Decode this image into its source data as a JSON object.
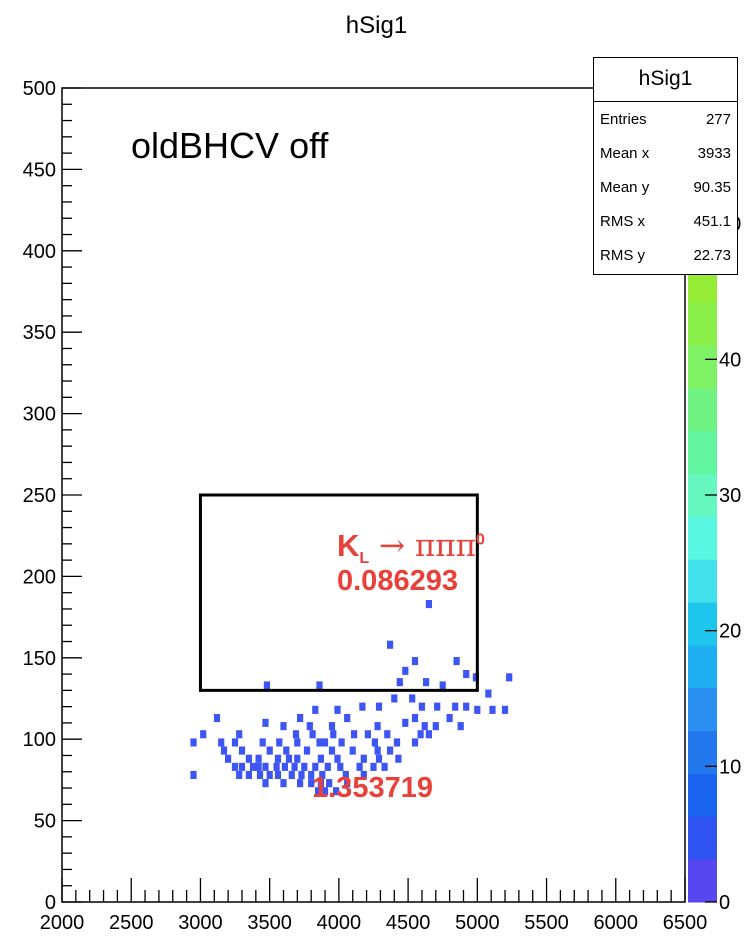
{
  "chart_data": {
    "type": "heatmap",
    "title": "hSig1",
    "xlabel": "",
    "ylabel": "",
    "xlim": [
      2000,
      6500
    ],
    "ylim": [
      0,
      500
    ],
    "x_ticks": [
      "2000",
      "2500",
      "3000",
      "3500",
      "4000",
      "4500",
      "5000",
      "5500",
      "6000",
      "6500"
    ],
    "y_ticks": [
      "0",
      "50",
      "100",
      "150",
      "200",
      "250",
      "300",
      "350",
      "400",
      "450",
      "500"
    ],
    "z_ticks": [
      "0",
      "10",
      "20",
      "30",
      "40",
      "50"
    ],
    "bin_width_x": 45,
    "bin_width_y": 5,
    "grid": false,
    "overlay_text": "oldBHCV off",
    "signal_box": {
      "x": [
        3000,
        5000
      ],
      "y": [
        130,
        250
      ]
    },
    "annotations": {
      "decay": "K_L → πππ0",
      "decay_parts": {
        "particle": "K",
        "sub": "L",
        "arrow": "→",
        "products": "πππ",
        "sup": "0"
      },
      "in_box_value": "0.086293",
      "below_box_value": "1.353719"
    },
    "stats": {
      "title": "hSig1",
      "entries_label": "Entries",
      "entries": "277",
      "mean_x_label": "Mean x",
      "mean_x": "3933",
      "mean_y_label": "Mean y",
      "mean_y": "90.35",
      "rms_x_label": "RMS x",
      "rms_x": "451.1",
      "rms_y_label": "RMS y",
      "rms_y": "22.73"
    },
    "points": [
      [
        4650,
        183
      ],
      [
        4370,
        158
      ],
      [
        4550,
        148
      ],
      [
        4480,
        142
      ],
      [
        4850,
        148
      ],
      [
        4920,
        140
      ],
      [
        4990,
        138
      ],
      [
        5230,
        138
      ],
      [
        4750,
        133
      ],
      [
        5080,
        128
      ],
      [
        4440,
        135
      ],
      [
        4630,
        135
      ],
      [
        3480,
        133
      ],
      [
        3860,
        133
      ],
      [
        4400,
        125
      ],
      [
        4530,
        125
      ],
      [
        4600,
        120
      ],
      [
        4710,
        120
      ],
      [
        4840,
        120
      ],
      [
        4920,
        120
      ],
      [
        5000,
        118
      ],
      [
        5110,
        118
      ],
      [
        5200,
        118
      ],
      [
        3120,
        113
      ],
      [
        3720,
        113
      ],
      [
        3830,
        118
      ],
      [
        4170,
        120
      ],
      [
        4290,
        120
      ],
      [
        3990,
        118
      ],
      [
        4060,
        113
      ],
      [
        4550,
        113
      ],
      [
        4800,
        113
      ],
      [
        4620,
        108
      ],
      [
        4700,
        108
      ],
      [
        3470,
        110
      ],
      [
        3600,
        108
      ],
      [
        3790,
        108
      ],
      [
        3950,
        108
      ],
      [
        4280,
        108
      ],
      [
        4480,
        110
      ],
      [
        4880,
        108
      ],
      [
        3020,
        103
      ],
      [
        3280,
        103
      ],
      [
        3690,
        103
      ],
      [
        3810,
        103
      ],
      [
        3960,
        103
      ],
      [
        4110,
        103
      ],
      [
        4210,
        103
      ],
      [
        4350,
        103
      ],
      [
        4590,
        103
      ],
      [
        4650,
        103
      ],
      [
        2950,
        98
      ],
      [
        3150,
        98
      ],
      [
        3250,
        98
      ],
      [
        3450,
        98
      ],
      [
        3570,
        98
      ],
      [
        3700,
        98
      ],
      [
        3860,
        98
      ],
      [
        3900,
        98
      ],
      [
        4020,
        98
      ],
      [
        4260,
        98
      ],
      [
        4420,
        98
      ],
      [
        4550,
        98
      ],
      [
        3170,
        93
      ],
      [
        3300,
        93
      ],
      [
        3500,
        93
      ],
      [
        3620,
        93
      ],
      [
        3770,
        93
      ],
      [
        3950,
        93
      ],
      [
        4100,
        93
      ],
      [
        4280,
        93
      ],
      [
        4370,
        93
      ],
      [
        3200,
        88
      ],
      [
        3350,
        88
      ],
      [
        3420,
        88
      ],
      [
        3560,
        88
      ],
      [
        3640,
        88
      ],
      [
        3700,
        88
      ],
      [
        3870,
        88
      ],
      [
        3990,
        88
      ],
      [
        4180,
        88
      ],
      [
        4290,
        88
      ],
      [
        4430,
        88
      ],
      [
        3250,
        83
      ],
      [
        3300,
        83
      ],
      [
        3380,
        83
      ],
      [
        3420,
        83
      ],
      [
        3470,
        83
      ],
      [
        3550,
        83
      ],
      [
        3610,
        83
      ],
      [
        3680,
        83
      ],
      [
        3750,
        83
      ],
      [
        3830,
        83
      ],
      [
        3920,
        83
      ],
      [
        4010,
        83
      ],
      [
        4150,
        83
      ],
      [
        4250,
        83
      ],
      [
        4330,
        83
      ],
      [
        2950,
        78
      ],
      [
        3280,
        78
      ],
      [
        3350,
        78
      ],
      [
        3430,
        78
      ],
      [
        3500,
        78
      ],
      [
        3560,
        78
      ],
      [
        3660,
        78
      ],
      [
        3730,
        78
      ],
      [
        3800,
        78
      ],
      [
        3880,
        78
      ],
      [
        4050,
        78
      ],
      [
        4180,
        78
      ],
      [
        3470,
        73
      ],
      [
        3600,
        73
      ],
      [
        3720,
        73
      ],
      [
        3800,
        73
      ],
      [
        3870,
        73
      ],
      [
        3930,
        73
      ],
      [
        4060,
        73
      ],
      [
        3850,
        68
      ],
      [
        3900,
        68
      ],
      [
        3980,
        68
      ]
    ]
  }
}
